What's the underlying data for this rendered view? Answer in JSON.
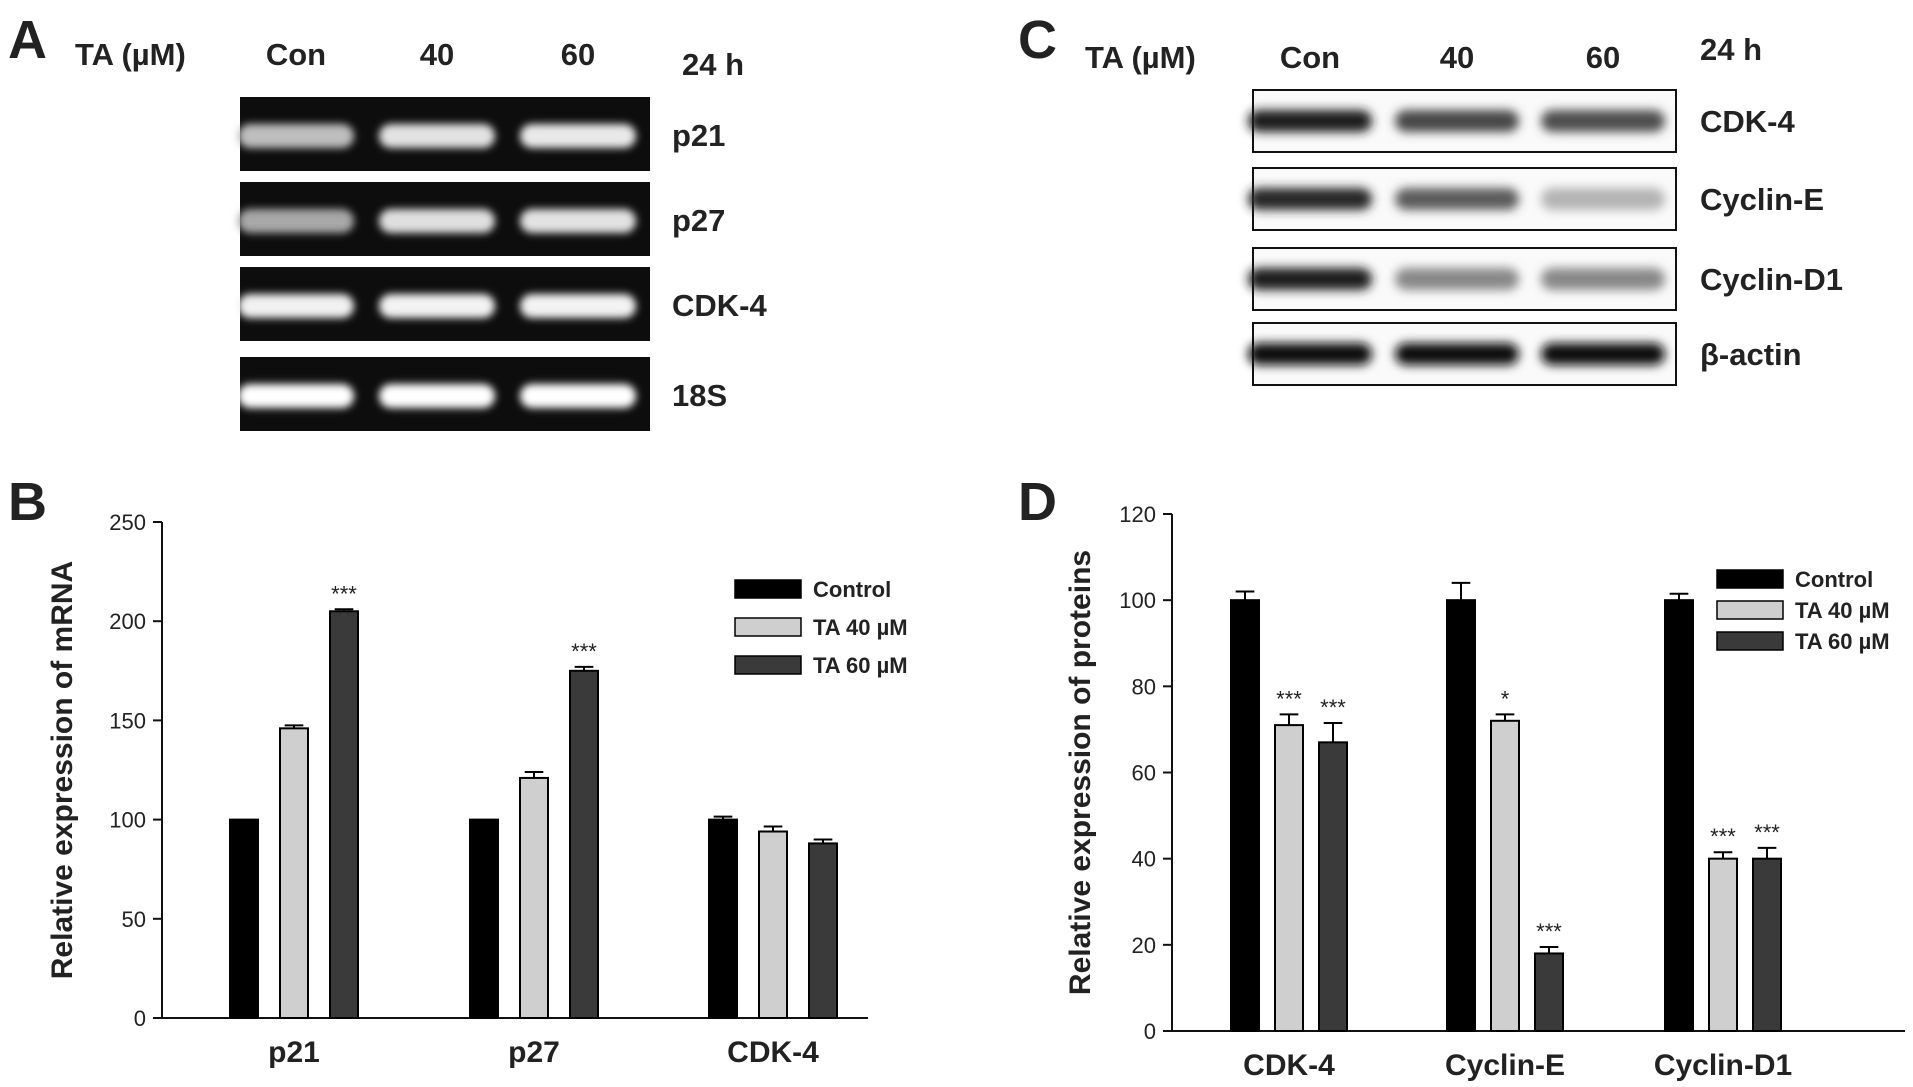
{
  "panels": {
    "A": {
      "letter": "A",
      "treatment_label": "TA (µM)",
      "lanes": [
        "Con",
        "40",
        "60"
      ],
      "time": "24 h",
      "bands": [
        {
          "label": "p21",
          "intensity": [
            0.55,
            0.8,
            0.85
          ]
        },
        {
          "label": "p27",
          "intensity": [
            0.4,
            0.78,
            0.8
          ]
        },
        {
          "label": "CDK-4",
          "intensity": [
            0.9,
            0.92,
            0.92
          ]
        },
        {
          "label": "18S",
          "intensity": [
            1.0,
            1.0,
            1.0
          ]
        }
      ]
    },
    "C": {
      "letter": "C",
      "treatment_label": "TA (µM)",
      "lanes": [
        "Con",
        "40",
        "60"
      ],
      "time": "24 h",
      "bands": [
        {
          "label": "CDK-4",
          "intensity": [
            0.95,
            0.75,
            0.72
          ]
        },
        {
          "label": "Cyclin-E",
          "intensity": [
            0.9,
            0.65,
            0.25
          ]
        },
        {
          "label": "Cyclin-D1",
          "intensity": [
            0.95,
            0.45,
            0.45
          ]
        },
        {
          "label": "β-actin",
          "intensity": [
            1.0,
            1.0,
            1.0
          ]
        }
      ]
    },
    "B": {
      "letter": "B"
    },
    "D": {
      "letter": "D"
    }
  },
  "chart_data": [
    {
      "panel": "B",
      "type": "bar",
      "ylabel": "Relative expression of mRNA",
      "xlabel": "",
      "ylim": [
        0,
        250
      ],
      "yticks": [
        0,
        50,
        100,
        150,
        200,
        250
      ],
      "categories": [
        "p21",
        "p27",
        "CDK-4"
      ],
      "legend_position": "top-right",
      "series": [
        {
          "name": "Control",
          "color": "#000000",
          "values": [
            100,
            100,
            100
          ],
          "errors": [
            0,
            0,
            1.5
          ],
          "sig": [
            "",
            "",
            ""
          ]
        },
        {
          "name": "TA 40 µM",
          "color": "#cfcfcf",
          "values": [
            146,
            121,
            94
          ],
          "errors": [
            1.5,
            3,
            2.5
          ],
          "sig": [
            "",
            "",
            ""
          ]
        },
        {
          "name": "TA 60 µM",
          "color": "#3a3a3a",
          "values": [
            205,
            175,
            88
          ],
          "errors": [
            1,
            2,
            2
          ],
          "sig": [
            "***",
            "***",
            ""
          ]
        }
      ]
    },
    {
      "panel": "D",
      "type": "bar",
      "ylabel": "Relative expression of proteins",
      "xlabel": "",
      "ylim": [
        0,
        120
      ],
      "yticks": [
        0,
        20,
        40,
        60,
        80,
        100,
        120
      ],
      "categories": [
        "CDK-4",
        "Cyclin-E",
        "Cyclin-D1"
      ],
      "legend_position": "top-right",
      "series": [
        {
          "name": "Control",
          "color": "#000000",
          "values": [
            100,
            100,
            100
          ],
          "errors": [
            2,
            4,
            1.5
          ],
          "sig": [
            "",
            "",
            ""
          ]
        },
        {
          "name": "TA 40 µM",
          "color": "#cfcfcf",
          "values": [
            71,
            72,
            40
          ],
          "errors": [
            2.5,
            1.5,
            1.5
          ],
          "sig": [
            "***",
            "*",
            "***"
          ]
        },
        {
          "name": "TA 60 µM",
          "color": "#3a3a3a",
          "values": [
            67,
            18,
            40
          ],
          "errors": [
            4.5,
            1.5,
            2.5
          ],
          "sig": [
            "***",
            "***",
            "***"
          ]
        }
      ]
    }
  ]
}
